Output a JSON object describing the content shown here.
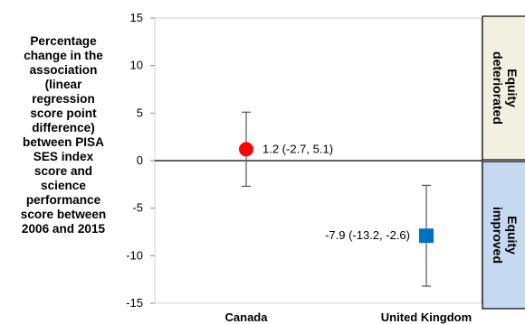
{
  "chart_data": {
    "type": "scatter",
    "ylabel": "Percentage\nchange in the\nassociation\n(linear\nregression\nscore point\ndifference)\nbetween PISA\nSES index\nscore and\nscience\nperformance\nscore between\n2006 and 2015",
    "categories": [
      "Canada",
      "United Kingdom"
    ],
    "ylim": [
      -15,
      15
    ],
    "yticks": [
      -15,
      -10,
      -5,
      0,
      5,
      10,
      15
    ],
    "grid": false,
    "points": [
      {
        "category": "Canada",
        "value": 1.2,
        "low": -2.7,
        "high": 5.1,
        "label": "1.2 (-2.7, 5.1)",
        "marker": "circle",
        "color": "#ff0000"
      },
      {
        "category": "United Kingdom",
        "value": -7.9,
        "low": -13.2,
        "high": -2.6,
        "label": "-7.9 (-13.2, -2.6)",
        "marker": "square",
        "color": "#0070c0"
      }
    ],
    "bands": [
      {
        "label": "Equity deteriorated",
        "from": 0,
        "to": 15,
        "color": "#f2f0e1"
      },
      {
        "label": "Equity improved",
        "from": -15,
        "to": 0,
        "color": "#c6d9f1"
      }
    ]
  }
}
